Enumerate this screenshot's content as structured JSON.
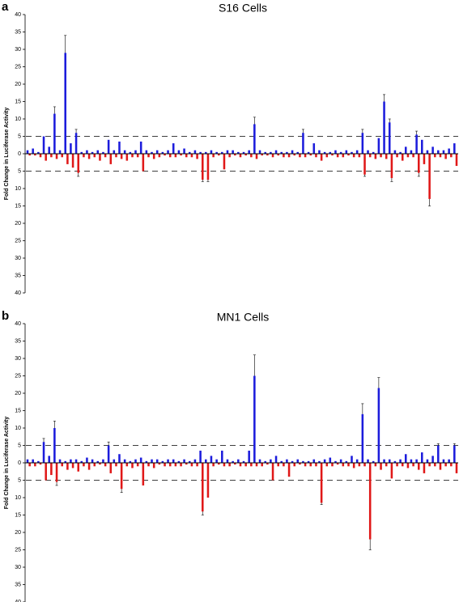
{
  "chart_data": [
    {
      "type": "bar",
      "panel_label": "a",
      "title": "S16 Cells",
      "ylabel": "Fold Change in Luciferase Activity",
      "categories": [
        null,
        null,
        null,
        null,
        null,
        null,
        null,
        null,
        null,
        null,
        null,
        null,
        null,
        null,
        null,
        null,
        null,
        null,
        null,
        null,
        null,
        null,
        null,
        null,
        null,
        null,
        null,
        null,
        null,
        null,
        null,
        null,
        null,
        null,
        null,
        null,
        null,
        null,
        null,
        null,
        null,
        null,
        null,
        null,
        null,
        null,
        null,
        null,
        null,
        null,
        null,
        null,
        null,
        null,
        null,
        null,
        null,
        null,
        null,
        null,
        null,
        null,
        null,
        null,
        null,
        null,
        null,
        null,
        null,
        null,
        null,
        null,
        null,
        null,
        null,
        null,
        null,
        null,
        null,
        null
      ],
      "series": [
        {
          "color": "#1c1cdc",
          "values": [
            1,
            1.5,
            0.5,
            5,
            2,
            11.5,
            1,
            29,
            3,
            6,
            0.5,
            1,
            0.5,
            1,
            0.5,
            4,
            1,
            3.5,
            1,
            0.5,
            1,
            3.5,
            1,
            0.5,
            1,
            0.5,
            1,
            3,
            1,
            1.5,
            0.5,
            1,
            0.5,
            0.5,
            1,
            0.5,
            0.5,
            1,
            1,
            0.5,
            0.5,
            1,
            8.5,
            1,
            0.5,
            0.5,
            1,
            0.5,
            0.5,
            1,
            0.5,
            6,
            0.5,
            3,
            1,
            0.5,
            0.5,
            1,
            0.5,
            1,
            0.5,
            1,
            6,
            1,
            0.5,
            4.5,
            15,
            9,
            1,
            0.5,
            2,
            1,
            5.5,
            4,
            1,
            2,
            1,
            1,
            1.5,
            3
          ],
          "errors": [
            null,
            null,
            null,
            null,
            null,
            2,
            null,
            5,
            null,
            1,
            null,
            null,
            null,
            null,
            null,
            null,
            null,
            null,
            null,
            null,
            null,
            null,
            null,
            null,
            null,
            null,
            null,
            null,
            null,
            null,
            null,
            null,
            null,
            null,
            null,
            null,
            null,
            null,
            null,
            null,
            null,
            null,
            2,
            null,
            null,
            null,
            null,
            null,
            null,
            null,
            null,
            1,
            null,
            null,
            null,
            null,
            null,
            null,
            null,
            null,
            null,
            null,
            1,
            null,
            null,
            null,
            2,
            1,
            null,
            null,
            null,
            null,
            1,
            null,
            null,
            null,
            null,
            null,
            null,
            null
          ]
        },
        {
          "color": "#e01818",
          "values": [
            -0.5,
            -0.5,
            -1,
            -2,
            -1,
            -1.5,
            -1,
            -3,
            -4,
            -5.5,
            -1,
            -1.5,
            -1,
            -2,
            -1,
            -3,
            -1,
            -1.5,
            -2,
            -1,
            -1,
            -5,
            -1,
            -1.5,
            -1,
            -0.5,
            -1,
            -1,
            -0.5,
            -1,
            -1,
            -1.5,
            -7.5,
            -7.5,
            -1,
            -0.5,
            -4.5,
            -1,
            -0.5,
            -1,
            -0.5,
            -1,
            -1.5,
            -0.5,
            -0.5,
            -1,
            -0.5,
            -1,
            -1,
            -0.5,
            -1,
            -1,
            -0.5,
            -1,
            -2,
            -1,
            -0.5,
            -1,
            -1,
            -0.5,
            -1,
            -1,
            -6,
            -1,
            -1.5,
            -1,
            -1.5,
            -7,
            -1,
            -2,
            -1,
            -1,
            -5.5,
            -3,
            -13,
            -1,
            -1,
            -1.5,
            -1,
            -3.5
          ],
          "errors": [
            null,
            null,
            null,
            null,
            null,
            null,
            null,
            null,
            null,
            1,
            null,
            null,
            null,
            null,
            null,
            null,
            null,
            null,
            null,
            null,
            null,
            null,
            null,
            null,
            null,
            null,
            null,
            null,
            null,
            null,
            null,
            null,
            0.5,
            0.5,
            null,
            null,
            null,
            null,
            null,
            null,
            null,
            null,
            null,
            null,
            null,
            null,
            null,
            null,
            null,
            null,
            null,
            null,
            null,
            null,
            null,
            null,
            null,
            null,
            null,
            null,
            null,
            null,
            0.5,
            null,
            null,
            null,
            null,
            1,
            null,
            null,
            null,
            null,
            1,
            null,
            2,
            null,
            null,
            null,
            null,
            null
          ]
        }
      ],
      "ylim": [
        -40,
        40
      ],
      "yticks": [
        40,
        35,
        30,
        25,
        20,
        15,
        10,
        5,
        0,
        {
          "value": -5,
          "label": "5"
        },
        {
          "value": -10,
          "label": "10"
        },
        {
          "value": -15,
          "label": "15"
        },
        {
          "value": -20,
          "label": "20"
        },
        {
          "value": -25,
          "label": "25"
        },
        {
          "value": -30,
          "label": "30"
        },
        {
          "value": -35,
          "label": "35"
        },
        {
          "value": -40,
          "label": "40"
        }
      ],
      "hlines": [
        5,
        -5
      ]
    },
    {
      "type": "bar",
      "panel_label": "b",
      "title": "MN1 Cells",
      "ylabel": "Fold Change in Luciferase Activity",
      "categories": [
        null,
        null,
        null,
        null,
        null,
        null,
        null,
        null,
        null,
        null,
        null,
        null,
        null,
        null,
        null,
        null,
        null,
        null,
        null,
        null,
        null,
        null,
        null,
        null,
        null,
        null,
        null,
        null,
        null,
        null,
        null,
        null,
        null,
        null,
        null,
        null,
        null,
        null,
        null,
        null,
        null,
        null,
        null,
        null,
        null,
        null,
        null,
        null,
        null,
        null,
        null,
        null,
        null,
        null,
        null,
        null,
        null,
        null,
        null,
        null,
        null,
        null,
        null,
        null,
        null,
        null,
        null,
        null,
        null,
        null,
        null,
        null,
        null,
        null,
        null,
        null,
        null,
        null,
        null,
        null
      ],
      "series": [
        {
          "color": "#1c1cdc",
          "values": [
            1,
            1,
            0.5,
            6,
            2,
            10,
            1,
            0.5,
            1,
            1,
            0.5,
            1.5,
            1,
            0.5,
            1,
            5,
            1,
            2.5,
            1,
            0.5,
            1,
            1.5,
            0.5,
            1,
            1,
            0.5,
            1,
            1,
            0.5,
            1,
            0.5,
            1,
            3.5,
            1,
            2,
            1,
            3.5,
            1,
            0.5,
            1,
            0.5,
            3.5,
            25,
            1,
            0.5,
            1,
            2,
            0.5,
            1,
            0.5,
            1,
            0.5,
            0.5,
            1,
            0.5,
            1,
            1.5,
            0.5,
            1,
            0.5,
            2,
            1,
            14,
            1,
            0.5,
            21.5,
            1,
            1,
            0.5,
            1,
            2.5,
            1,
            1,
            3,
            1,
            2,
            5,
            1,
            1,
            5
          ],
          "errors": [
            null,
            null,
            null,
            1,
            null,
            2,
            null,
            null,
            null,
            null,
            null,
            null,
            null,
            null,
            null,
            1,
            null,
            null,
            null,
            null,
            null,
            null,
            null,
            null,
            null,
            null,
            null,
            null,
            null,
            null,
            null,
            null,
            null,
            null,
            null,
            null,
            null,
            null,
            null,
            null,
            null,
            null,
            6,
            null,
            null,
            null,
            null,
            null,
            null,
            null,
            null,
            null,
            null,
            null,
            null,
            null,
            null,
            null,
            null,
            null,
            null,
            null,
            3,
            null,
            null,
            3,
            null,
            null,
            null,
            null,
            null,
            null,
            null,
            null,
            null,
            null,
            0.5,
            null,
            null,
            0.5
          ]
        },
        {
          "color": "#e01818",
          "values": [
            -1,
            -1,
            -0.5,
            -5,
            -3.5,
            -5.5,
            -1,
            -2,
            -1.5,
            -2.5,
            -1,
            -2,
            -1,
            -0.5,
            -1,
            -3,
            -1,
            -7.5,
            -1,
            -1.5,
            -1,
            -6.5,
            -1,
            -1.5,
            -0.5,
            -1,
            -1,
            -1,
            -1,
            -0.5,
            -1,
            -1,
            -14,
            -10,
            -1,
            -0.5,
            -1,
            -1,
            -0.5,
            -1,
            -1,
            -1,
            -1,
            -1,
            -0.5,
            -5,
            -1,
            -1,
            -4,
            -1,
            -0.5,
            -1,
            -1,
            -1,
            -11.5,
            -1,
            -1,
            -0.5,
            -1,
            -1,
            -1.5,
            -1,
            -1,
            -22,
            -1,
            -2,
            -1,
            -4.5,
            -1,
            -1,
            -1.5,
            -1,
            -2,
            -3,
            -1,
            -1,
            -2,
            -1,
            -1,
            -3
          ],
          "errors": [
            null,
            null,
            null,
            null,
            null,
            1,
            null,
            null,
            null,
            null,
            null,
            null,
            null,
            null,
            null,
            null,
            null,
            1,
            null,
            null,
            null,
            null,
            null,
            null,
            null,
            null,
            null,
            null,
            null,
            null,
            null,
            null,
            1,
            null,
            null,
            null,
            null,
            null,
            null,
            null,
            null,
            null,
            null,
            null,
            null,
            null,
            null,
            null,
            null,
            null,
            null,
            null,
            null,
            null,
            0.5,
            null,
            null,
            null,
            null,
            null,
            null,
            null,
            null,
            3,
            null,
            null,
            null,
            null,
            null,
            null,
            null,
            null,
            null,
            null,
            null,
            null,
            null,
            null,
            null,
            null
          ]
        }
      ],
      "ylim": [
        -40,
        40
      ],
      "yticks": [
        40,
        35,
        30,
        25,
        20,
        15,
        10,
        5,
        0,
        {
          "value": -5,
          "label": "5"
        },
        {
          "value": -10,
          "label": "10"
        },
        {
          "value": -15,
          "label": "15"
        },
        {
          "value": -20,
          "label": "20"
        },
        {
          "value": -25,
          "label": "25"
        },
        {
          "value": -30,
          "label": "30"
        },
        {
          "value": -35,
          "label": "35"
        },
        {
          "value": -40,
          "label": "40"
        }
      ],
      "hlines": [
        5,
        -5
      ]
    }
  ]
}
